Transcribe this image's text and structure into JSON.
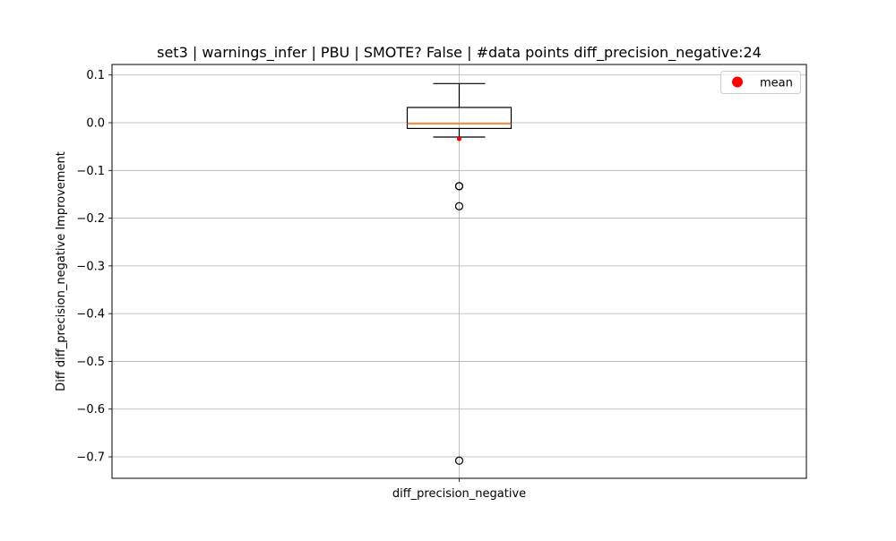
{
  "chart_data": {
    "type": "box",
    "title": "set3 | warnings_infer | PBU | SMOTE? False | #data points diff_precision_negative:24",
    "xlabel": "",
    "ylabel": "Diff diff_precision_negative Improvement",
    "categories": [
      "diff_precision_negative"
    ],
    "ylim": [
      -0.745,
      0.122
    ],
    "yticks": [
      0.1,
      0.0,
      -0.1,
      -0.2,
      -0.3,
      -0.4,
      -0.5,
      -0.6,
      -0.7
    ],
    "ytick_labels": [
      "0.1",
      "0.0",
      "−0.1",
      "−0.2",
      "−0.3",
      "−0.4",
      "−0.5",
      "−0.6",
      "−0.7"
    ],
    "grid": true,
    "legend": {
      "position": "top-right",
      "entries": [
        {
          "label": "mean",
          "color": "#ff0000",
          "marker": "circle"
        }
      ]
    },
    "box": {
      "whisker_low": -0.03,
      "q1": -0.012,
      "median": -0.002,
      "q3": 0.032,
      "whisker_high": 0.082,
      "mean": -0.034,
      "outliers": [
        -0.133,
        -0.133,
        -0.175,
        -0.708
      ]
    },
    "colors": {
      "box": "#000000",
      "median": "#ff7f0e",
      "mean": "#ff0000",
      "grid": "#b0b0b0"
    }
  }
}
